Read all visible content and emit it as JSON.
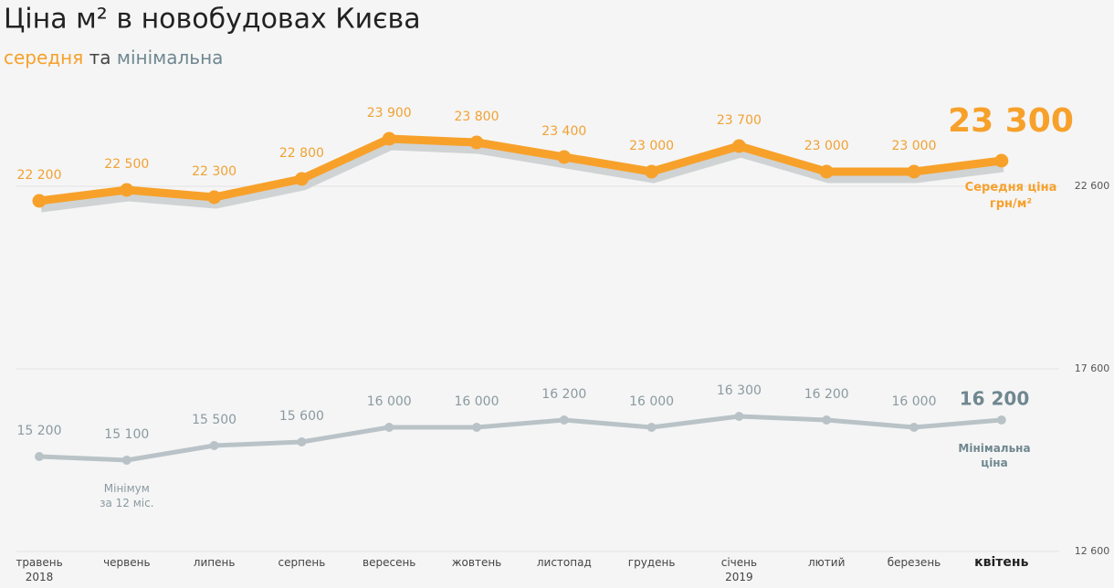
{
  "chart_data": {
    "type": "line",
    "title": "Ціна м² в новобудовах Києва",
    "subtitle": [
      "середня",
      "та",
      "мінімальна"
    ],
    "categories": [
      "травень\n2018",
      "червень",
      "липень",
      "серпень",
      "вересень",
      "жовтень",
      "листопад",
      "грудень",
      "січень\n2019",
      "лютий",
      "березень",
      "квітень"
    ],
    "series": [
      {
        "name": "Середня ціна\nгрн/м²",
        "color": "#f7a12b",
        "values": [
          22200,
          22500,
          22300,
          22800,
          23900,
          23800,
          23400,
          23000,
          23700,
          23000,
          23000,
          23300
        ],
        "value_labels": [
          "22 200",
          "22 500",
          "22 300",
          "22 800",
          "23 900",
          "23 800",
          "23 400",
          "23 000",
          "23 700",
          "23 000",
          "23 000",
          "23 300"
        ]
      },
      {
        "name": "Мінімальна\nціна",
        "color": "#b9c3c7",
        "values": [
          15200,
          15100,
          15500,
          15600,
          16000,
          16000,
          16200,
          16000,
          16300,
          16200,
          16000,
          16200
        ],
        "value_labels": [
          "15 200",
          "15 100",
          "15 500",
          "15 600",
          "16 000",
          "16 000",
          "16 200",
          "16 000",
          "16 300",
          "16 200",
          "16 000",
          "16 200"
        ]
      }
    ],
    "annotation": "Мінімум\nза 12 міс.",
    "ylim": [
      12600,
      25100
    ],
    "yticks": [
      {
        "value": 12600,
        "label": "12 600"
      },
      {
        "value": 17600,
        "label": "17 600"
      },
      {
        "value": 22600,
        "label": "22 600"
      }
    ],
    "grid": true
  }
}
